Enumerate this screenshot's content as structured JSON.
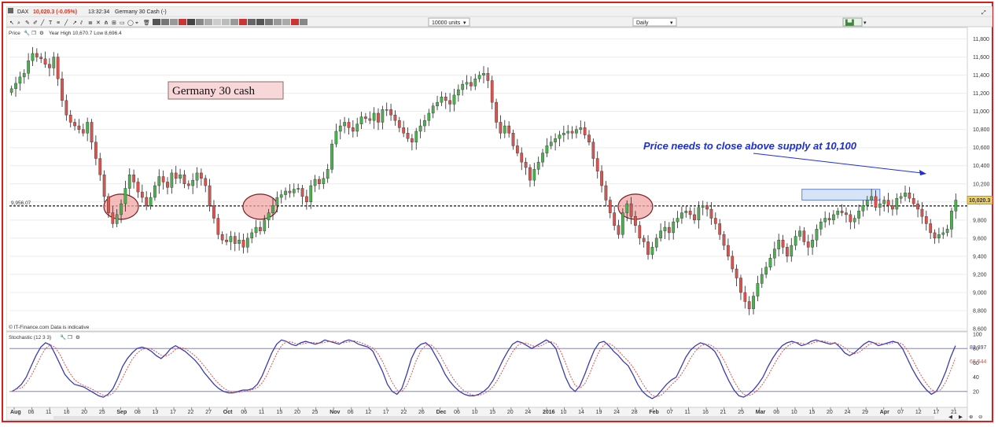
{
  "toolbar": {
    "instrument": "DAX",
    "quote": "10,020.3 (-0.05%)",
    "time": "13:32:34",
    "name": "Germany 30 Cash (-)",
    "units": "10000 units",
    "interval": "Daily"
  },
  "price_panel": {
    "label": "Price",
    "stats": "Year High 10,670.7 Low 8,696.4",
    "watermark": "© IT-Finance.com  Data is indicative",
    "current_price_tag": "10,020.3",
    "support_tag": "9,956.07"
  },
  "stochastic_panel": {
    "label": "Stochastic (12 3 3)",
    "upper_tag": "82.397",
    "lower_tag": "66.544"
  },
  "title_box": "Germany 30 cash",
  "annotation": "Price needs to close above supply at 10,100",
  "colors": {
    "up": "#4caf50",
    "down": "#d9534f",
    "annotation": "#1c2fd8",
    "frame": "#d81e1e",
    "circle_fill": "#f2a6a6",
    "supply_zone": "#cfe0f7"
  },
  "chart_data": [
    {
      "type": "candlestick",
      "title": "",
      "ylim": [
        8600,
        11900
      ],
      "y_ticks": [
        8600,
        8800,
        9000,
        9200,
        9400,
        9600,
        9800,
        10000,
        10200,
        10400,
        10600,
        10800,
        11000,
        11200,
        11400,
        11600,
        11800
      ],
      "y_tick_labels": [
        "8,600",
        "8,800",
        "9,000",
        "9,200",
        "9,400",
        "9,600",
        "9,800",
        "10,000",
        "10,200",
        "10,400",
        "10,600",
        "10,800",
        "11,000",
        "11,200",
        "11,400",
        "11,600",
        "11,800"
      ],
      "x_tick_labels": [
        "Aug",
        "06",
        "11",
        "16",
        "20",
        "25",
        "Sep",
        "08",
        "13",
        "17",
        "22",
        "27",
        "Oct",
        "06",
        "11",
        "15",
        "20",
        "25",
        "Nov",
        "06",
        "12",
        "17",
        "22",
        "26",
        "Dec",
        "06",
        "10",
        "15",
        "20",
        "24",
        "2016",
        "10",
        "14",
        "19",
        "24",
        "28",
        "Feb",
        "07",
        "11",
        "16",
        "21",
        "25",
        "Mar",
        "06",
        "10",
        "15",
        "20",
        "24",
        "29",
        "Apr",
        "07",
        "12",
        "17",
        "21"
      ],
      "support_level": 9956,
      "supply_zone": [
        10020,
        10140
      ],
      "close_series": [
        11250,
        11310,
        11380,
        11420,
        11560,
        11640,
        11600,
        11580,
        11520,
        11480,
        11600,
        11360,
        11120,
        10960,
        10880,
        10840,
        10800,
        10760,
        10880,
        10660,
        10480,
        10300,
        10060,
        9880,
        9760,
        9860,
        9980,
        10150,
        10300,
        10220,
        10110,
        10050,
        9960,
        10050,
        10180,
        10280,
        10220,
        10160,
        10320,
        10260,
        10300,
        10200,
        10180,
        10240,
        10320,
        10260,
        10180,
        9960,
        9820,
        9640,
        9580,
        9560,
        9620,
        9540,
        9580,
        9500,
        9600,
        9660,
        9720,
        9680,
        9800,
        9880,
        9960,
        10050,
        10080,
        10120,
        10100,
        10140,
        10150,
        10060,
        10000,
        10180,
        10250,
        10200,
        10260,
        10360,
        10640,
        10780,
        10840,
        10880,
        10820,
        10780,
        10860,
        10940,
        10920,
        10900,
        10980,
        10880,
        11020,
        11020,
        10960,
        10900,
        10820,
        10760,
        10700,
        10660,
        10780,
        10840,
        10900,
        10980,
        11060,
        11100,
        11160,
        11120,
        11080,
        11180,
        11240,
        11300,
        11320,
        11280,
        11360,
        11400,
        11420,
        11340,
        11100,
        10880,
        10760,
        10840,
        10760,
        10620,
        10540,
        10440,
        10380,
        10240,
        10360,
        10440,
        10540,
        10620,
        10660,
        10700,
        10740,
        10760,
        10780,
        10760,
        10800,
        10820,
        10740,
        10660,
        10480,
        10340,
        10180,
        10020,
        9880,
        9740,
        9640,
        9880,
        9980,
        9840,
        9740,
        9600,
        9560,
        9420,
        9500,
        9600,
        9680,
        9720,
        9660,
        9780,
        9820,
        9880,
        9900,
        9860,
        9800,
        9940,
        9960,
        9920,
        9820,
        9760,
        9640,
        9520,
        9400,
        9260,
        9160,
        9000,
        8900,
        8820,
        8960,
        9100,
        9200,
        9280,
        9380,
        9480,
        9580,
        9500,
        9400,
        9520,
        9620,
        9680,
        9560,
        9500,
        9580,
        9700,
        9780,
        9820,
        9800,
        9860,
        9900,
        9880,
        9860,
        9780,
        9820,
        9900,
        9960,
        10020,
        10060,
        9940,
        9980,
        10020,
        9960,
        9920,
        10040,
        10060,
        10100,
        10040,
        9980,
        9920,
        9840,
        9760,
        9660,
        9600,
        9640,
        9660,
        9700,
        9900,
        10020
      ]
    },
    {
      "type": "line",
      "title": "",
      "ylim": [
        0,
        100
      ],
      "y_ticks": [
        20,
        40,
        60,
        80,
        100
      ],
      "levels": [
        20,
        80
      ],
      "series": [
        {
          "values": [
            20,
            24,
            30,
            40,
            55,
            70,
            82,
            88,
            85,
            72,
            58,
            44,
            36,
            30,
            28,
            26,
            22,
            18,
            14,
            12,
            16,
            24,
            38,
            55,
            66,
            74,
            80,
            82,
            80,
            76,
            70,
            66,
            72,
            80,
            84,
            80,
            76,
            70,
            64,
            56,
            46,
            38,
            30,
            24,
            20,
            18,
            18,
            20,
            22,
            22,
            24,
            30,
            42,
            58,
            74,
            86,
            92,
            90,
            86,
            84,
            88,
            90,
            88,
            86,
            88,
            92,
            90,
            88,
            86,
            90,
            92,
            90,
            86,
            84,
            82,
            76,
            62,
            48,
            30,
            20,
            16,
            24,
            44,
            66,
            80,
            86,
            88,
            82,
            70,
            58,
            44,
            34,
            26,
            20,
            16,
            14,
            14,
            16,
            20,
            26,
            36,
            50,
            64,
            76,
            86,
            90,
            88,
            84,
            80,
            84,
            88,
            92,
            88,
            80,
            60,
            40,
            26,
            20,
            28,
            44,
            62,
            78,
            88,
            90,
            84,
            76,
            70,
            62,
            56,
            44,
            30,
            20,
            14,
            10,
            14,
            22,
            30,
            36,
            40,
            54,
            68,
            78,
            84,
            88,
            86,
            82,
            76,
            64,
            48,
            34,
            22,
            14,
            12,
            16,
            22,
            30,
            40,
            54,
            66,
            76,
            84,
            88,
            90,
            88,
            84,
            86,
            90,
            92,
            90,
            88,
            86,
            88,
            82,
            74,
            70,
            74,
            80,
            86,
            90,
            88,
            84,
            86,
            88,
            90,
            88,
            80,
            66,
            52,
            40,
            30,
            22,
            16,
            20,
            32,
            48,
            68,
            84
          ]
        }
      ]
    }
  ]
}
